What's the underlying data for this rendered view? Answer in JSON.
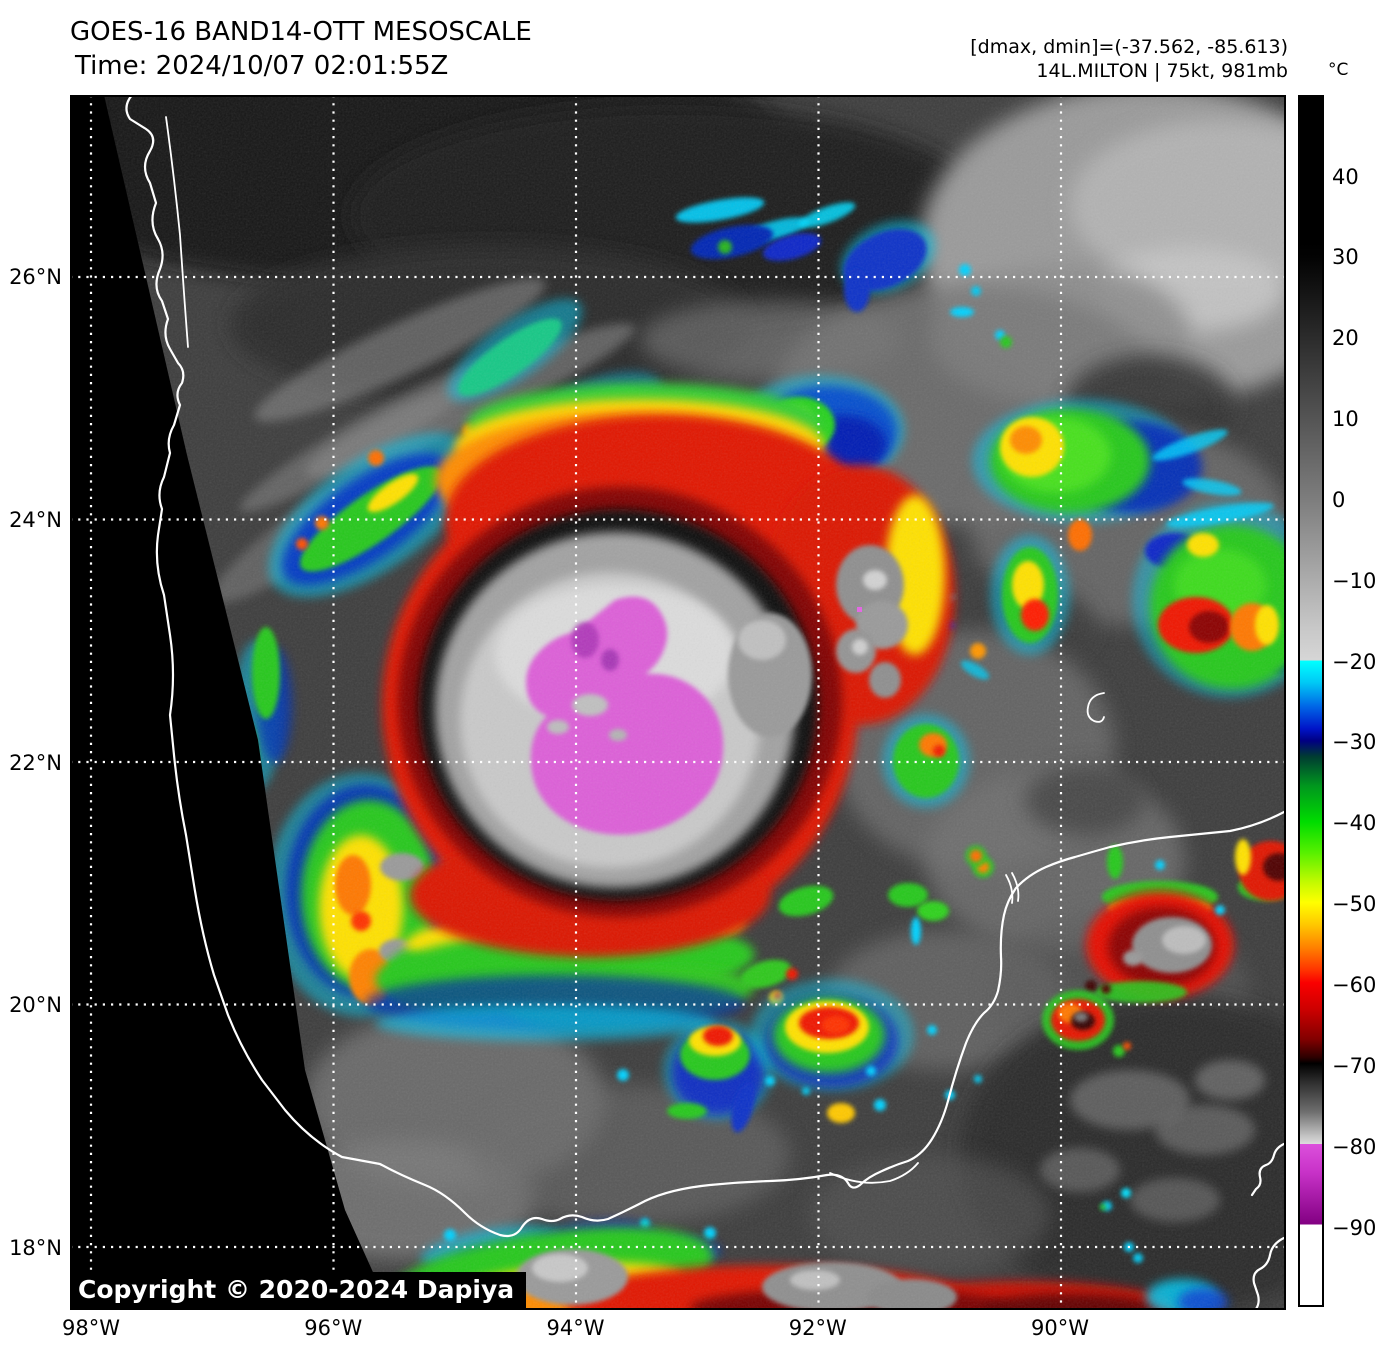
{
  "header": {
    "title": "GOES-16 BAND14-OTT MESOSCALE",
    "time_line": "Time: 2024/10/07 02:01:55Z",
    "annotation_line1": "[dmax, dmin]=(-37.562, -85.613)",
    "annotation_line2": "14L.MILTON | 75kt, 981mb"
  },
  "storm": {
    "id": "14L",
    "name": "MILTON",
    "intensity": "75kt",
    "pressure": "981mb",
    "dmax": "-37.562",
    "dmin": "-85.613"
  },
  "colorbar": {
    "unit_label": "°C",
    "ticks": [
      "40",
      "30",
      "20",
      "10",
      "0",
      "−10",
      "−20",
      "−30",
      "−40",
      "−50",
      "−60",
      "−70",
      "−80",
      "−90"
    ],
    "palette": {
      "warm_grayscale_top": "#000000",
      "cold_threshold_cyan": "#00ffff",
      "navy": "#000082",
      "green": "#00dc00",
      "yellow": "#ffff00",
      "red": "#fa0000",
      "deep_black": "#000000",
      "magenta": "#dc50dc",
      "coldest_white": "#ffffff"
    }
  },
  "axes": {
    "lat_ticks": [
      "26°N",
      "24°N",
      "22°N",
      "20°N",
      "18°N"
    ],
    "lon_ticks": [
      "98°W",
      "96°W",
      "94°W",
      "92°W",
      "90°W"
    ]
  },
  "watermark": "Copyright © 2020-2024 Dapiya"
}
